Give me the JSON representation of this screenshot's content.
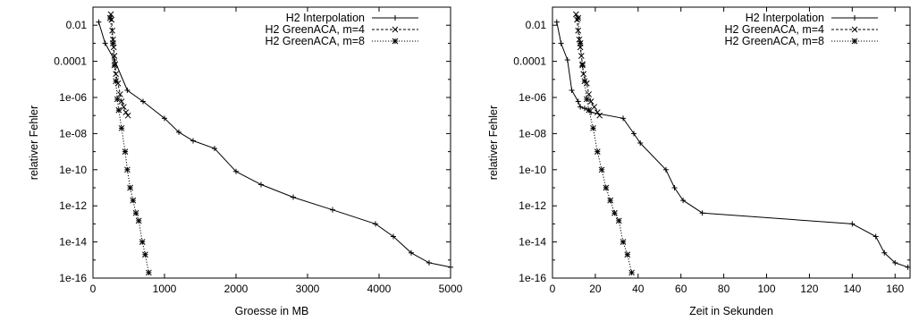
{
  "chart_data": [
    {
      "type": "line",
      "xlabel": "Groesse in MB",
      "ylabel": "relativer Fehler",
      "xlim": [
        0,
        5000
      ],
      "ylim": [
        1e-16,
        0.1
      ],
      "yscale": "log",
      "xticks": [
        0,
        1000,
        2000,
        3000,
        4000,
        5000
      ],
      "xtick_labels": [
        "0",
        "1000",
        "2000",
        "3000",
        "4000",
        "5000"
      ],
      "yticks": [
        1e-16,
        1e-14,
        1e-12,
        1e-10,
        1e-08,
        1e-06,
        0.0001,
        0.01
      ],
      "ytick_labels": [
        "1e-16",
        "1e-14",
        "1e-12",
        "1e-10",
        "1e-08",
        "1e-06",
        "0.0001",
        "0.01"
      ],
      "grid": false,
      "legend_position": "top-right",
      "series": [
        {
          "name": "H2 Interpolation",
          "style": "solid",
          "marker": "plus",
          "x": [
            80,
            170,
            300,
            480,
            700,
            1000,
            1200,
            1400,
            1700,
            2000,
            2350,
            2800,
            3350,
            3950,
            4200,
            4450,
            4700,
            5000
          ],
          "y": [
            0.015,
            0.001,
            0.00012,
            2.5e-06,
            6e-07,
            7e-08,
            1.2e-08,
            4e-09,
            1.5e-09,
            8e-11,
            1.5e-11,
            3e-12,
            6e-13,
            1e-13,
            2e-14,
            2.5e-15,
            7e-16,
            4e-16
          ]
        },
        {
          "name": "H2 GreenACA, m=4",
          "style": "dashed",
          "marker": "x",
          "x": [
            250,
            260,
            270,
            280,
            290,
            300,
            310,
            320,
            350,
            380,
            400,
            430,
            460,
            490
          ],
          "y": [
            0.04,
            0.02,
            0.005,
            0.0016,
            0.0006,
            0.0002,
            7e-05,
            2e-05,
            6e-06,
            1.5e-06,
            6e-07,
            3e-07,
            1.5e-07,
            1e-07
          ]
        },
        {
          "name": "H2 GreenACA, m=8",
          "style": "dotted",
          "marker": "star",
          "x": [
            240,
            280,
            300,
            320,
            340,
            360,
            400,
            450,
            480,
            520,
            560,
            600,
            640,
            690,
            730,
            780
          ],
          "y": [
            0.025,
            0.001,
            6e-05,
            8e-06,
            8e-07,
            2e-07,
            2e-08,
            1e-09,
            1e-10,
            1e-11,
            2e-12,
            4e-13,
            1.5e-13,
            1e-14,
            2e-15,
            2e-16
          ]
        }
      ]
    },
    {
      "type": "line",
      "xlabel": "Zeit in Sekunden",
      "ylabel": "relativer Fehler",
      "xlim": [
        0,
        167
      ],
      "ylim": [
        1e-16,
        0.1
      ],
      "yscale": "log",
      "xticks": [
        0,
        20,
        40,
        60,
        80,
        100,
        120,
        140,
        160
      ],
      "xtick_labels": [
        "0",
        "20",
        "40",
        "60",
        "80",
        "100",
        "120",
        "140",
        "160"
      ],
      "yticks": [
        1e-16,
        1e-14,
        1e-12,
        1e-10,
        1e-08,
        1e-06,
        0.0001,
        0.01
      ],
      "ytick_labels": [
        "1e-16",
        "1e-14",
        "1e-12",
        "1e-10",
        "1e-08",
        "1e-06",
        "0.0001",
        "0.01"
      ],
      "grid": false,
      "legend_position": "top-right",
      "series": [
        {
          "name": "H2 Interpolation",
          "style": "solid",
          "marker": "plus",
          "x": [
            2,
            4,
            7,
            9,
            12,
            13,
            15,
            18,
            33,
            38,
            41,
            53,
            57,
            61,
            70,
            140,
            151,
            155,
            160,
            166
          ],
          "y": [
            0.015,
            0.001,
            0.00012,
            2.5e-06,
            6e-07,
            3e-07,
            2.5e-07,
            1.5e-07,
            7e-08,
            1e-08,
            3e-09,
            1e-10,
            1e-11,
            2e-12,
            4e-13,
            1e-13,
            2e-14,
            2.5e-15,
            7e-16,
            4e-16
          ]
        },
        {
          "name": "H2 GreenACA, m=4",
          "style": "dashed",
          "marker": "x",
          "x": [
            11,
            11.5,
            12,
            12.5,
            13,
            13.5,
            14,
            14.5,
            16,
            17,
            18,
            19.5,
            21,
            22
          ],
          "y": [
            0.04,
            0.02,
            0.005,
            0.0016,
            0.0006,
            0.0002,
            7e-05,
            2e-05,
            6e-06,
            1.5e-06,
            6e-07,
            3e-07,
            1.5e-07,
            1e-07
          ]
        },
        {
          "name": "H2 GreenACA, m=8",
          "style": "dotted",
          "marker": "star",
          "x": [
            12,
            13,
            14,
            15,
            16,
            17,
            19,
            21,
            23,
            25,
            27,
            29,
            31,
            33,
            35,
            37
          ],
          "y": [
            0.025,
            0.001,
            6e-05,
            8e-06,
            8e-07,
            2e-07,
            2e-08,
            1e-09,
            1e-10,
            1e-11,
            2e-12,
            4e-13,
            1.5e-13,
            1e-14,
            2e-15,
            2e-16
          ]
        }
      ]
    }
  ]
}
